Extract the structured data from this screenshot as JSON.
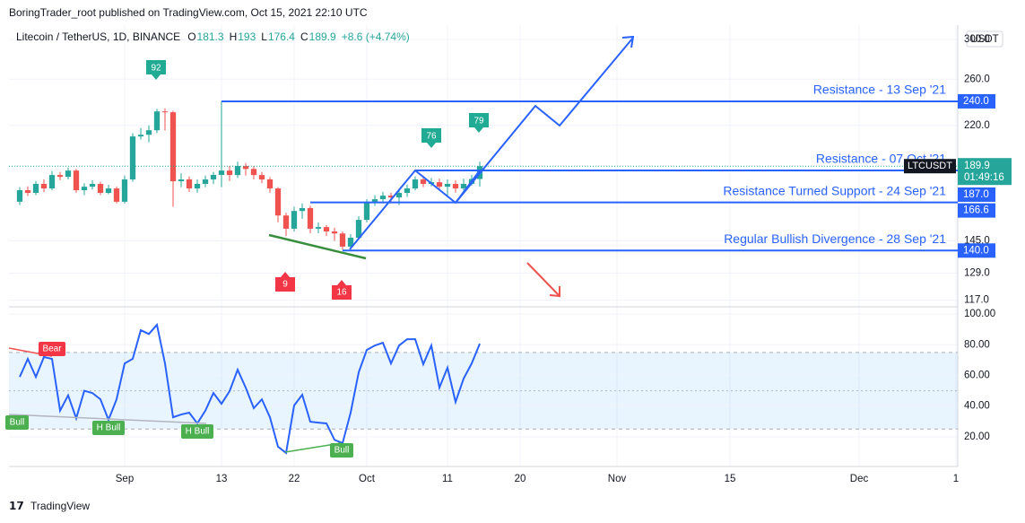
{
  "header": {
    "publisher": "BoringTrader_root published on TradingView.com, Oct 15, 2021 22:10 UTC",
    "brand": "TradingView"
  },
  "chart_data": [
    {
      "type": "candlestick",
      "title": "Litecoin / TetherUS, 1D, BINANCE",
      "ohlc_letters": [
        "O",
        "H",
        "L",
        "C"
      ],
      "change_label": "+8.6 (+4.74%)",
      "currency": "USDT",
      "symbol": "LTCUSDT",
      "countdown": "01:49:16",
      "up_color": "#26a69a",
      "down_color": "#ef5350",
      "log_scale": true,
      "grid": true,
      "x": [
        "2021-08-19",
        "2021-08-20",
        "2021-08-21",
        "2021-08-22",
        "2021-08-23",
        "2021-08-24",
        "2021-08-25",
        "2021-08-26",
        "2021-08-27",
        "2021-08-28",
        "2021-08-29",
        "2021-08-30",
        "2021-08-31",
        "2021-09-01",
        "2021-09-02",
        "2021-09-03",
        "2021-09-04",
        "2021-09-05",
        "2021-09-06",
        "2021-09-07",
        "2021-09-08",
        "2021-09-09",
        "2021-09-10",
        "2021-09-11",
        "2021-09-12",
        "2021-09-13",
        "2021-09-14",
        "2021-09-15",
        "2021-09-16",
        "2021-09-17",
        "2021-09-18",
        "2021-09-19",
        "2021-09-20",
        "2021-09-21",
        "2021-09-22",
        "2021-09-23",
        "2021-09-24",
        "2021-09-25",
        "2021-09-26",
        "2021-09-27",
        "2021-09-28",
        "2021-09-29",
        "2021-09-30",
        "2021-10-01",
        "2021-10-02",
        "2021-10-03",
        "2021-10-04",
        "2021-10-05",
        "2021-10-06",
        "2021-10-07",
        "2021-10-08",
        "2021-10-09",
        "2021-10-10",
        "2021-10-11",
        "2021-10-12",
        "2021-10-13",
        "2021-10-14",
        "2021-10-15"
      ],
      "open": [
        167.0,
        174.1,
        172.4,
        178.1,
        175.2,
        183.9,
        182.7,
        186.9,
        174.1,
        176.3,
        178.1,
        172.4,
        175.2,
        167.0,
        181.0,
        211.4,
        212.7,
        216.2,
        231.4,
        230.7,
        179.8,
        181.0,
        175.2,
        178.1,
        181.0,
        184.0,
        186.9,
        183.9,
        190.0,
        188.0,
        183.9,
        181.0,
        175.2,
        158.9,
        151.5,
        161.5,
        163.2,
        151.5,
        152.4,
        150.0,
        148.9,
        142.0,
        146.6,
        156.4,
        167.0,
        168.5,
        170.7,
        169.6,
        172.4,
        175.2,
        181.0,
        178.1,
        179.2,
        176.3,
        178.1,
        175.2,
        178.1,
        181.3
      ],
      "high": [
        176.0,
        176.5,
        180.0,
        181.0,
        186.5,
        186.0,
        189.0,
        188.0,
        178.5,
        180.5,
        179.5,
        177.5,
        176.5,
        183.5,
        214.0,
        218.0,
        220.0,
        233.5,
        234.0,
        232.0,
        185.0,
        183.0,
        181.0,
        183.5,
        186.0,
        240.0,
        190.0,
        193.0,
        192.0,
        190.0,
        186.0,
        182.5,
        176.0,
        160.5,
        164.0,
        166.0,
        164.5,
        155.0,
        153.5,
        152.0,
        150.0,
        148.5,
        158.5,
        168.5,
        171.0,
        173.0,
        172.5,
        175.0,
        177.5,
        183.0,
        183.5,
        182.0,
        181.5,
        181.0,
        180.5,
        181.5,
        184.0,
        193.0
      ],
      "low": [
        165.0,
        170.5,
        171.0,
        173.0,
        174.0,
        180.5,
        181.0,
        172.5,
        171.0,
        174.5,
        171.0,
        171.5,
        166.0,
        166.0,
        179.5,
        209.0,
        207.0,
        214.0,
        216.0,
        164.0,
        176.0,
        173.0,
        172.5,
        176.0,
        178.0,
        176.0,
        180.0,
        182.0,
        183.5,
        181.0,
        178.5,
        172.5,
        155.0,
        147.5,
        150.0,
        157.0,
        149.0,
        149.0,
        147.5,
        145.0,
        140.5,
        141.0,
        145.5,
        155.0,
        164.5,
        166.0,
        166.5,
        165.0,
        170.0,
        174.0,
        176.0,
        176.5,
        174.5,
        170.5,
        172.5,
        174.0,
        177.0,
        176.4
      ],
      "close": [
        174.1,
        172.4,
        178.1,
        175.2,
        183.9,
        182.7,
        186.9,
        174.1,
        176.3,
        178.1,
        172.4,
        175.2,
        167.0,
        181.0,
        211.4,
        212.7,
        216.2,
        231.4,
        230.7,
        179.8,
        181.0,
        175.2,
        178.1,
        181.0,
        184.0,
        186.9,
        183.9,
        190.0,
        188.0,
        183.9,
        181.0,
        175.2,
        158.9,
        151.5,
        161.5,
        163.2,
        151.5,
        152.4,
        150.0,
        148.9,
        142.0,
        146.6,
        156.4,
        167.0,
        168.5,
        170.7,
        169.6,
        172.4,
        175.2,
        181.0,
        178.1,
        179.2,
        176.3,
        178.1,
        175.2,
        178.1,
        181.3,
        189.9
      ],
      "xlim": [
        "2021-08-18",
        "2021-12-13"
      ],
      "xticks": [
        {
          "value": "2021-09-01",
          "label": "Sep"
        },
        {
          "value": "2021-09-13",
          "label": "13"
        },
        {
          "value": "2021-09-22",
          "label": "22"
        },
        {
          "value": "2021-10-01",
          "label": "Oct"
        },
        {
          "value": "2021-10-11",
          "label": "11"
        },
        {
          "value": "2021-10-20",
          "label": "20"
        },
        {
          "value": "2021-11-01",
          "label": "Nov"
        },
        {
          "value": "2021-11-15",
          "label": "15"
        },
        {
          "value": "2021-12-01",
          "label": "Dec"
        },
        {
          "value": "2021-12-13",
          "label": "1"
        }
      ],
      "ylim": [
        115,
        314
      ],
      "yticks": [
        {
          "value": 300,
          "label": "300.0"
        },
        {
          "value": 260,
          "label": "260.0"
        },
        {
          "value": 220,
          "label": "220.0"
        },
        {
          "value": 145,
          "label": "145.0"
        },
        {
          "value": 129,
          "label": "129.0"
        },
        {
          "value": 117,
          "label": "117.0"
        }
      ],
      "levels": [
        {
          "label": "Resistance - 13 Sep '21",
          "value": 240,
          "value_label": "240.0",
          "start": "2021-09-13"
        },
        {
          "label": "Resistance - 07 Oct '21",
          "value": 187,
          "value_label": "187.0",
          "start": "2021-10-07"
        },
        {
          "label": "Resistance Turned Support - 24 Sep '21",
          "value": 166.6,
          "value_label": "166.6",
          "start": "2021-09-24"
        },
        {
          "label": "Regular Bullish Divergence - 28 Sep '21",
          "value": 140,
          "value_label": "140.0",
          "start": "2021-09-28"
        }
      ],
      "signals": [
        92,
        9,
        16,
        76,
        79
      ]
    },
    {
      "type": "line",
      "series": [
        {
          "color": "#2962ff",
          "values": [
            59,
            70.8,
            59,
            72,
            70.8,
            37,
            47,
            32,
            50,
            48.5,
            44.4,
            31,
            44.4,
            67.8,
            70.8,
            89.5,
            87,
            93,
            67.8,
            32.7,
            34.5,
            35.7,
            28.7,
            37,
            48.5,
            41.5,
            49.7,
            63.7,
            52,
            38.6,
            44.4,
            32.7,
            13.5,
            9.4,
            40.4,
            47.4,
            29.8,
            29.2,
            28.7,
            18,
            15.8,
            35.7,
            62,
            76.6,
            79.5,
            81.3,
            67.8,
            79.5,
            83.6,
            83.6,
            67.3,
            79.5,
            52,
            65,
            42.7,
            57.9,
            67.8,
            80.7
          ]
        }
      ],
      "band": [
        25,
        75
      ],
      "midline": 50,
      "ylim": [
        0,
        103
      ],
      "yticks": [
        {
          "value": 100,
          "label": "100.00"
        },
        {
          "value": 80,
          "label": "80.00"
        },
        {
          "value": 60,
          "label": "60.00"
        },
        {
          "value": 40,
          "label": "40.00"
        },
        {
          "value": 20,
          "label": "20.00"
        }
      ],
      "annotations": [
        "Bear",
        "Bull",
        "H Bull",
        "H Bull",
        "Bull"
      ]
    }
  ]
}
